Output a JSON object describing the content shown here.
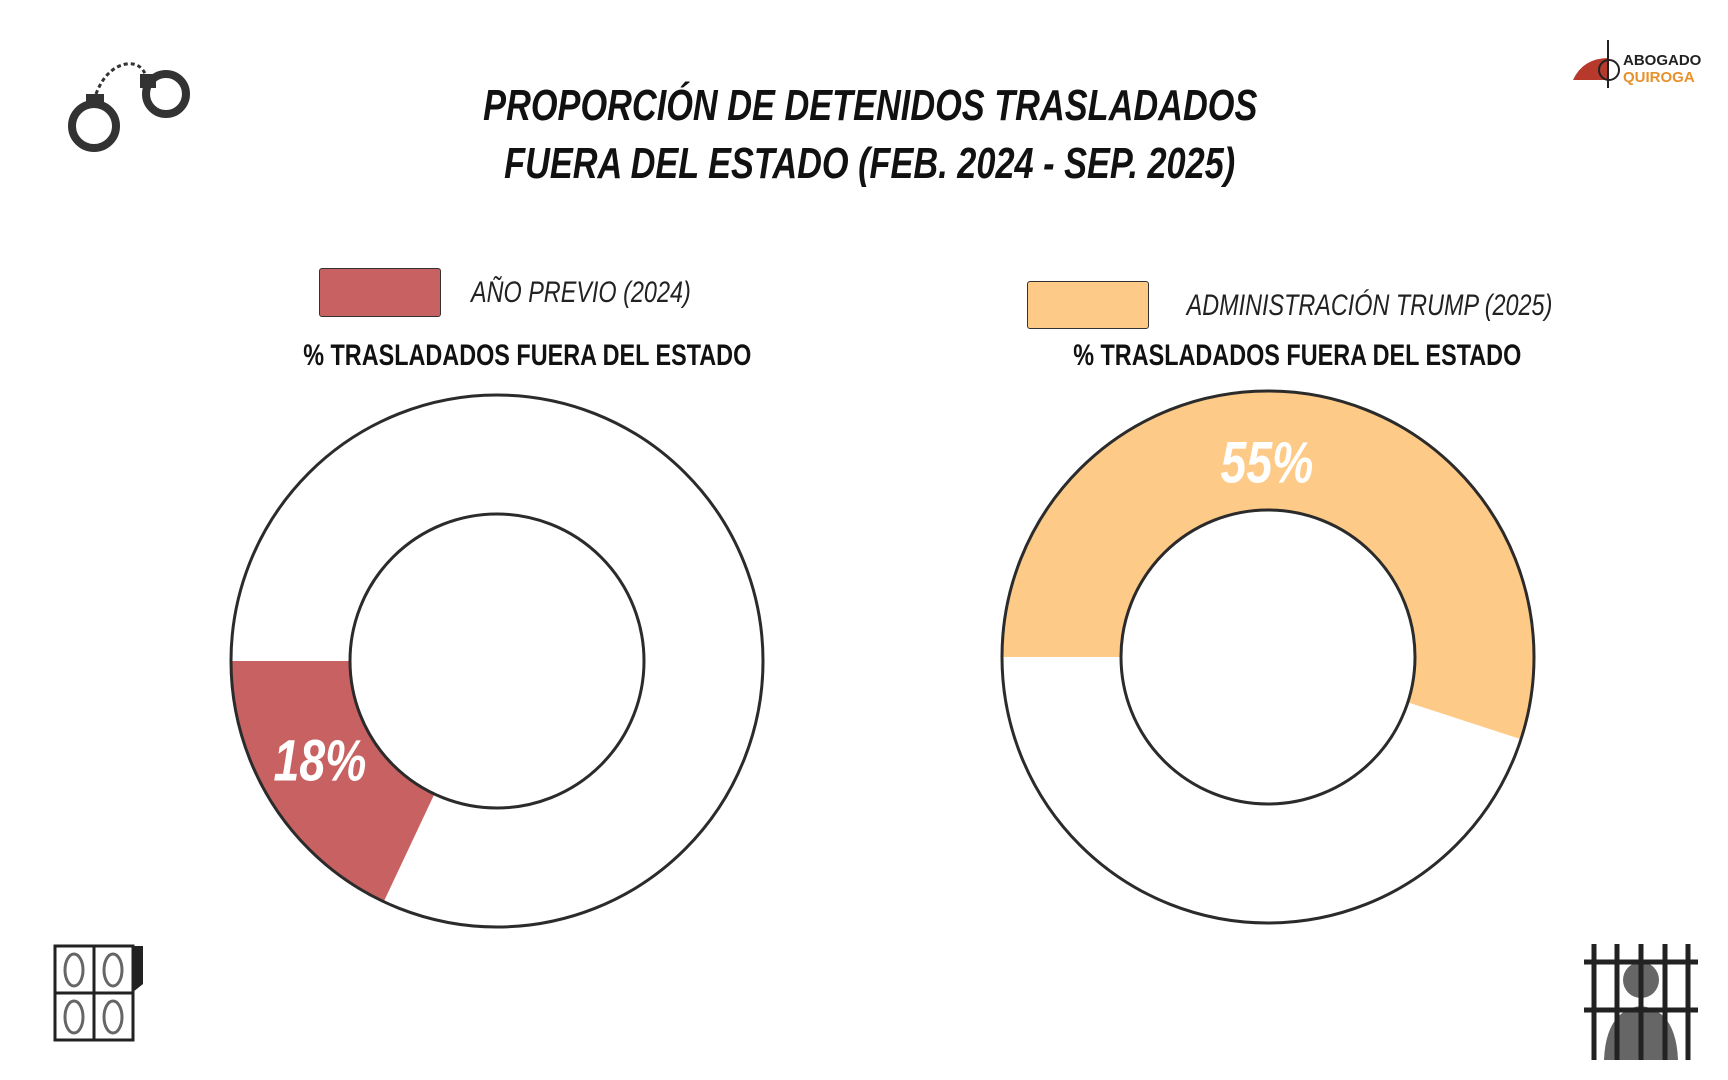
{
  "title": {
    "line1": "PROPORCIÓN DE DETENIDOS TRASLADADOS",
    "line2": "FUERA DEL ESTADO (FEB. 2024 - SEP. 2025)"
  },
  "logo": {
    "line1": "ABOGADO",
    "line2": "QUIROGA"
  },
  "icons": [
    "handcuffs-icon",
    "fingerprint-card-icon",
    "prisoner-behind-bars-icon"
  ],
  "chart_data": [
    {
      "type": "pie",
      "variant": "donut",
      "legend": "AÑO PREVIO (2024)",
      "subtitle": "% TRASLADADOS FUERA DEL ESTADO",
      "value": 18,
      "label": "18%",
      "color": "#c86262",
      "remainder_color": "#ffffff"
    },
    {
      "type": "pie",
      "variant": "donut",
      "legend": "ADMINISTRACIÓN TRUMP (2025)",
      "subtitle": "% TRASLADADOS FUERA DEL ESTADO",
      "value": 55,
      "label": "55%",
      "color": "#fdca88",
      "remainder_color": "#ffffff"
    }
  ]
}
